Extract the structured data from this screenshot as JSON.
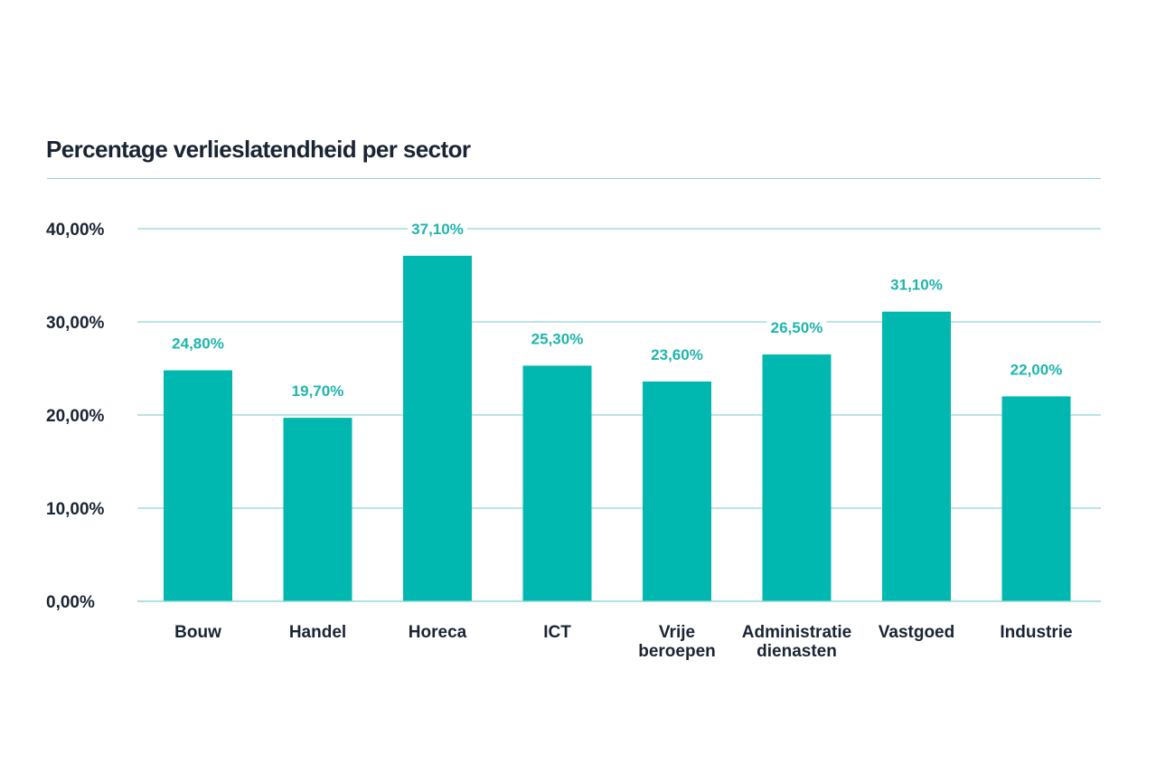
{
  "chart_data": {
    "type": "bar",
    "title": "Percentage verlieslatendheid per sector",
    "categories": [
      [
        "Bouw"
      ],
      [
        "Handel"
      ],
      [
        "Horeca"
      ],
      [
        "ICT"
      ],
      [
        "Vrije",
        "beroepen"
      ],
      [
        "Administratie",
        "dienasten"
      ],
      [
        "Vastgoed"
      ],
      [
        "Industrie"
      ]
    ],
    "values": [
      24.8,
      19.7,
      37.1,
      25.3,
      23.6,
      26.5,
      31.1,
      22.0
    ],
    "value_labels": [
      "24,80%",
      "19,70%",
      "37,10%",
      "25,30%",
      "23,60%",
      "26,50%",
      "31,10%",
      "22,00%"
    ],
    "yticks": [
      0,
      10,
      20,
      30,
      40
    ],
    "ytick_labels": [
      "0,00%",
      "10,00%",
      "20,00%",
      "30,00%",
      "40,00%"
    ],
    "ylim": [
      0,
      40
    ],
    "xlabel": "",
    "ylabel": "",
    "grid": true,
    "colors": {
      "bar": "#00b8b0",
      "grid": "#8ed8d3",
      "label": "#1fb5ad",
      "text": "#1a2433"
    }
  }
}
